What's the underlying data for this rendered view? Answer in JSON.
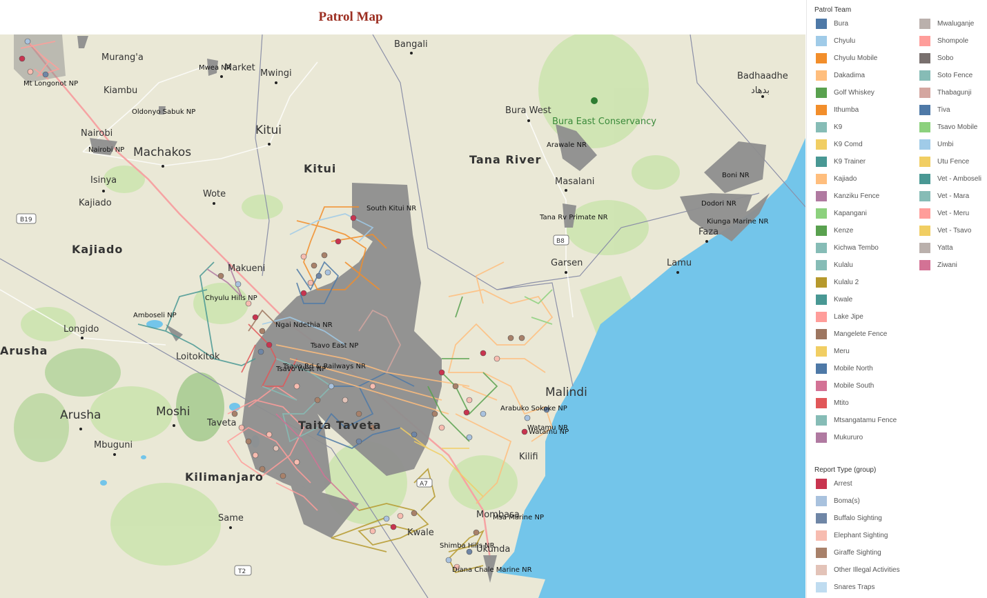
{
  "title": "Patrol Map",
  "colors": {
    "title": "#9b2d20",
    "land": "#eae8d6",
    "green_area": "#cde4b0",
    "park": "#8f8f8f",
    "water": "#73c5ea",
    "road": "#f6a3a3"
  },
  "map": {
    "park_labels": [
      "Mwea NR",
      "Mt Longonot NP",
      "Oldonyo Sabuk NP",
      "Nairobi NP",
      "South Kitui NR",
      "Chyulu Hills NP",
      "Amboseli NP",
      "Ngai Ndethia NR",
      "Tsavo East NP",
      "Tsavo Rd & Railways NR",
      "Tsavo West NP",
      "Arawale NR",
      "Tana Rv Primate NR",
      "Boni NR",
      "Dodori NR",
      "Kiunga Marine NR",
      "Arabuko Sokoke NP",
      "Watamu NR",
      "Watamu NP",
      "Msa Marine NP",
      "Shimba Hills NR",
      "Diana Chale Marine NR"
    ],
    "city_labels": [
      "Bangali",
      "Mwingi",
      "Kitui",
      "Machakos",
      "Bura West",
      "Masalani",
      "Garsen",
      "Lamu",
      "Faza",
      "Longido",
      "Moshi",
      "Arusha",
      "Mbuguni",
      "Same",
      "Malindi",
      "Kilifi",
      "Mombasa",
      "Kwale",
      "Ukunda",
      "Isinya",
      "Kajiado",
      "Wote",
      "Loitokitok",
      "Taveta",
      "Makueni",
      "Nairobi",
      "Kiambu",
      "Murang'a",
      "Badhaadhe",
      "Market"
    ],
    "region_labels": [
      "Kitui",
      "Tana River",
      "Kajiado",
      "Kilimanjaro",
      "Taita Taveta",
      "Arusha"
    ],
    "arabic_label": "بدهاد",
    "conservancy_label": "Bura East Conservancy",
    "shields": [
      "B19",
      "B8",
      "T2",
      "A7"
    ]
  },
  "legend_patrol": {
    "title": "Patrol Team",
    "column_1": [
      {
        "label": "Bura",
        "color": "#4e79a7"
      },
      {
        "label": "Chyulu",
        "color": "#a0cbe8"
      },
      {
        "label": "Chyulu Mobile",
        "color": "#f28e2b"
      },
      {
        "label": "Dakadima",
        "color": "#ffbe7d"
      },
      {
        "label": "Golf Whiskey",
        "color": "#59a14f"
      },
      {
        "label": "Ithumba",
        "color": "#f28e2b"
      },
      {
        "label": "K9",
        "color": "#86bcb6"
      },
      {
        "label": "K9 Comd",
        "color": "#f1ce63"
      },
      {
        "label": "K9 Trainer",
        "color": "#499894"
      },
      {
        "label": "Kajiado",
        "color": "#ffbe7d"
      },
      {
        "label": "Kanziku Fence",
        "color": "#b07aa1"
      },
      {
        "label": "Kapangani",
        "color": "#8cd17d"
      },
      {
        "label": "Kenze",
        "color": "#59a14f"
      },
      {
        "label": "Kichwa Tembo",
        "color": "#86bcb6"
      },
      {
        "label": "Kulalu",
        "color": "#86bcb6"
      },
      {
        "label": "Kulalu 2",
        "color": "#b6992d"
      },
      {
        "label": "Kwale",
        "color": "#499894"
      },
      {
        "label": "Lake Jipe",
        "color": "#ff9d9a"
      },
      {
        "label": "Mangelete Fence",
        "color": "#9d7660"
      },
      {
        "label": "Meru",
        "color": "#f1ce63"
      },
      {
        "label": "Mobile North",
        "color": "#4e79a7"
      },
      {
        "label": "Mobile South",
        "color": "#d37295"
      },
      {
        "label": "Mtito",
        "color": "#e15759"
      },
      {
        "label": "Mtsangatamu Fence",
        "color": "#86bcb6"
      },
      {
        "label": "Mukururo",
        "color": "#b07aa1"
      }
    ],
    "column_2": [
      {
        "label": "Mwaluganje",
        "color": "#bab0ac"
      },
      {
        "label": "Shompole",
        "color": "#ff9d9a"
      },
      {
        "label": "Sobo",
        "color": "#79706e"
      },
      {
        "label": "Soto Fence",
        "color": "#86bcb6"
      },
      {
        "label": "Thabagunji",
        "color": "#d4a6a0"
      },
      {
        "label": "Tiva",
        "color": "#4e79a7"
      },
      {
        "label": "Tsavo Mobile",
        "color": "#8cd17d"
      },
      {
        "label": "Umbi",
        "color": "#a0cbe8"
      },
      {
        "label": "Utu Fence",
        "color": "#f1ce63"
      },
      {
        "label": "Vet - Amboseli",
        "color": "#499894"
      },
      {
        "label": "Vet - Mara",
        "color": "#86bcb6"
      },
      {
        "label": "Vet - Meru",
        "color": "#ff9d9a"
      },
      {
        "label": "Vet - Tsavo",
        "color": "#f1ce63"
      },
      {
        "label": "Yatta",
        "color": "#bab0ac"
      },
      {
        "label": "Ziwani",
        "color": "#d37295"
      }
    ]
  },
  "legend_report": {
    "title": "Report Type (group)",
    "items": [
      {
        "label": "Arrest",
        "color": "#c8344f"
      },
      {
        "label": "Boma(s)",
        "color": "#a9c2de"
      },
      {
        "label": "Buffalo Sighting",
        "color": "#6f86a6"
      },
      {
        "label": "Elephant Sighting",
        "color": "#f7bcb0"
      },
      {
        "label": "Giraffe Sighting",
        "color": "#a8816a"
      },
      {
        "label": "Other Illegal Activities",
        "color": "#e3c3b8"
      },
      {
        "label": "Snares Traps",
        "color": "#bfdcf0"
      }
    ]
  }
}
